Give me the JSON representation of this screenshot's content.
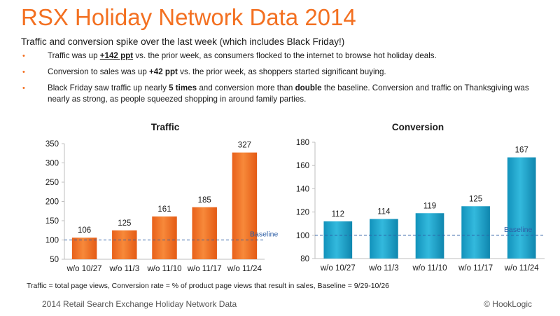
{
  "header": {
    "title": "RSX Holiday Network Data 2014",
    "subtitle": "Traffic and conversion spike over the last week (which includes Black Friday!)"
  },
  "bullets": [
    {
      "pre": "Traffic was up ",
      "strong": "+142 ppt",
      "post": " vs. the prior week, as consumers flocked to the internet to browse hot holiday deals."
    },
    {
      "pre": "Conversion to sales was up ",
      "strong": "+42 ppt",
      "post": " vs. the prior week, as shoppers started significant buying."
    },
    {
      "pre": "Black Friday saw traffic up nearly ",
      "strong": "5 times",
      "mid": " and conversion more than ",
      "strong2": "double",
      "post": " the baseline.  Conversion and traffic on Thanksgiving was nearly as strong, as people squeezed shopping in around family parties."
    }
  ],
  "footnote": "Traffic = total page views, Conversion rate = % of product page views that result in sales, Baseline = 9/29-10/26",
  "footer": {
    "left": "2014 Retail Search Exchange Holiday Network Data",
    "right": "© HookLogic"
  },
  "colors": {
    "orange": "#f37021",
    "teal": "#1fa9cf",
    "baseline": "#2e5fa6"
  },
  "chart_data": [
    {
      "type": "bar",
      "title": "Traffic",
      "categories": [
        "w/o 10/27",
        "w/o 11/3",
        "w/o 11/10",
        "w/o 11/17",
        "w/o 11/24"
      ],
      "values": [
        106,
        125,
        161,
        185,
        327
      ],
      "ylim": [
        50,
        350
      ],
      "yticks": [
        50,
        100,
        150,
        200,
        250,
        300,
        350
      ],
      "baseline": 100,
      "baseline_label": "Baseline",
      "color": "#f37021"
    },
    {
      "type": "bar",
      "title": "Conversion",
      "categories": [
        "w/o 10/27",
        "w/o 11/3",
        "w/o 11/10",
        "w/o 11/17",
        "w/o 11/24"
      ],
      "values": [
        112,
        114,
        119,
        125,
        167
      ],
      "ylim": [
        80,
        180
      ],
      "yticks": [
        80,
        100,
        120,
        140,
        160,
        180
      ],
      "baseline": 100,
      "baseline_label": "Baseline",
      "color": "#1fa9cf"
    }
  ]
}
